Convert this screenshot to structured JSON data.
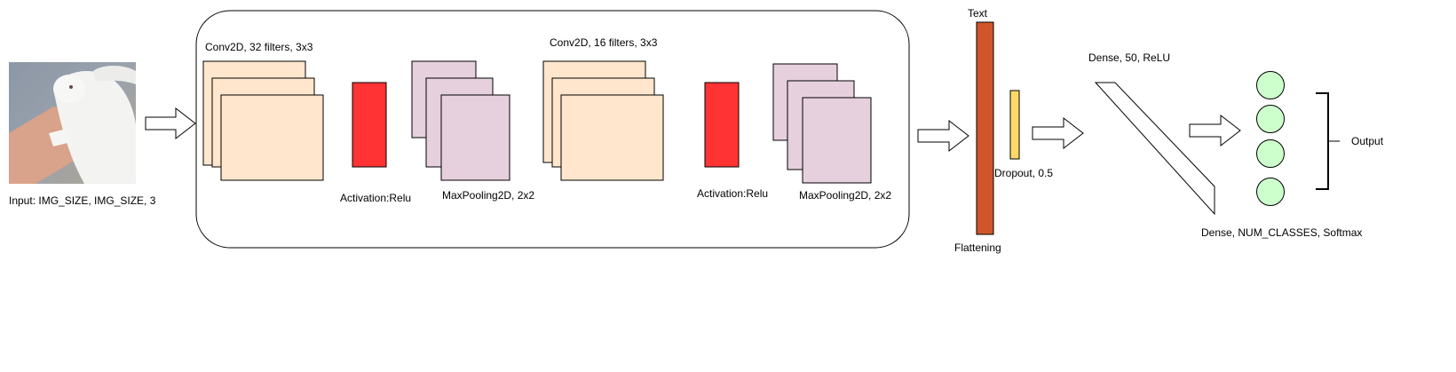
{
  "input": {
    "label": "Input: IMG_SIZE, IMG_SIZE, 3",
    "image": "rabbit-photo"
  },
  "conv1": {
    "label": "Conv2D, 32 filters, 3x3"
  },
  "act1": {
    "label": "Activation:Relu"
  },
  "pool1": {
    "label": "MaxPooling2D, 2x2"
  },
  "conv2": {
    "label": "Conv2D, 16 filters, 3x3"
  },
  "act2": {
    "label": "Activation:Relu"
  },
  "pool2": {
    "label": "MaxPooling2D, 2x2"
  },
  "text_label": "Text",
  "flatten": {
    "label": "Flattening"
  },
  "dropout": {
    "label": "Dropout, 0.5"
  },
  "dense1": {
    "label": "Dense, 50, ReLU"
  },
  "dense2": {
    "label": "Dense, NUM_CLASSES, Softmax"
  },
  "output": {
    "label": "Output"
  },
  "colors": {
    "conv_fill": "#FFE6CC",
    "activation_fill": "#FF3333",
    "pool_fill": "#E6D0DE",
    "flatten_fill": "#D0562A",
    "dropout_fill": "#FFD966",
    "node_fill": "#CCFFCC"
  }
}
